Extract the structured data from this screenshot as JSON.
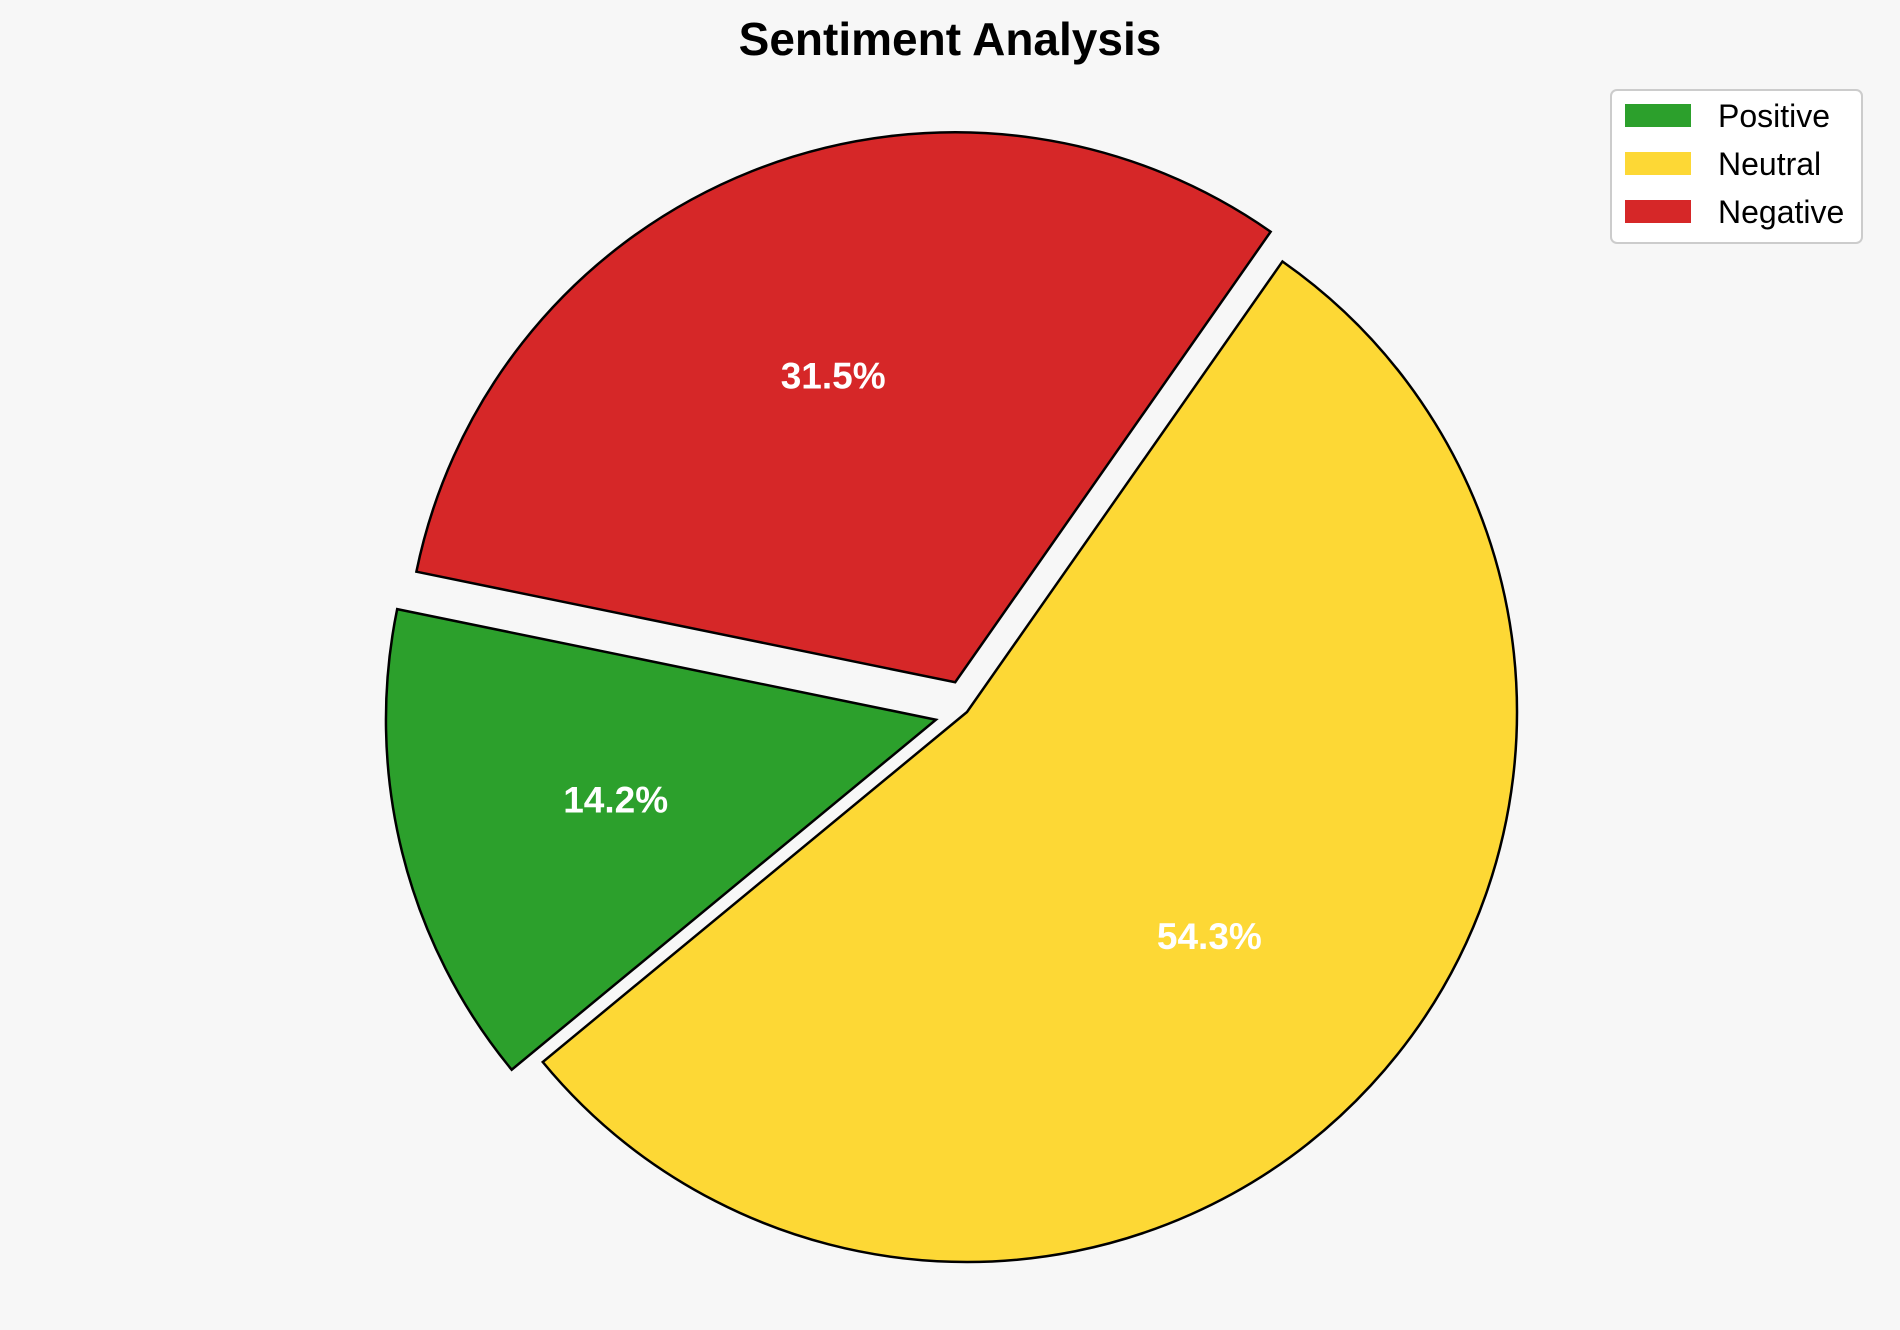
{
  "chart_data": {
    "type": "pie",
    "title": "Sentiment Analysis",
    "categories": [
      "Positive",
      "Neutral",
      "Negative"
    ],
    "values": [
      14.2,
      54.3,
      31.5
    ],
    "value_labels": [
      "14.2%",
      "54.3%",
      "31.5%"
    ],
    "colors": [
      "#2ca02c",
      "#fdd835",
      "#d62728"
    ],
    "exploded": [
      true,
      false,
      true
    ],
    "legend_position": "top-right",
    "edge_color": "#000000",
    "label_color": "#ffffff"
  }
}
